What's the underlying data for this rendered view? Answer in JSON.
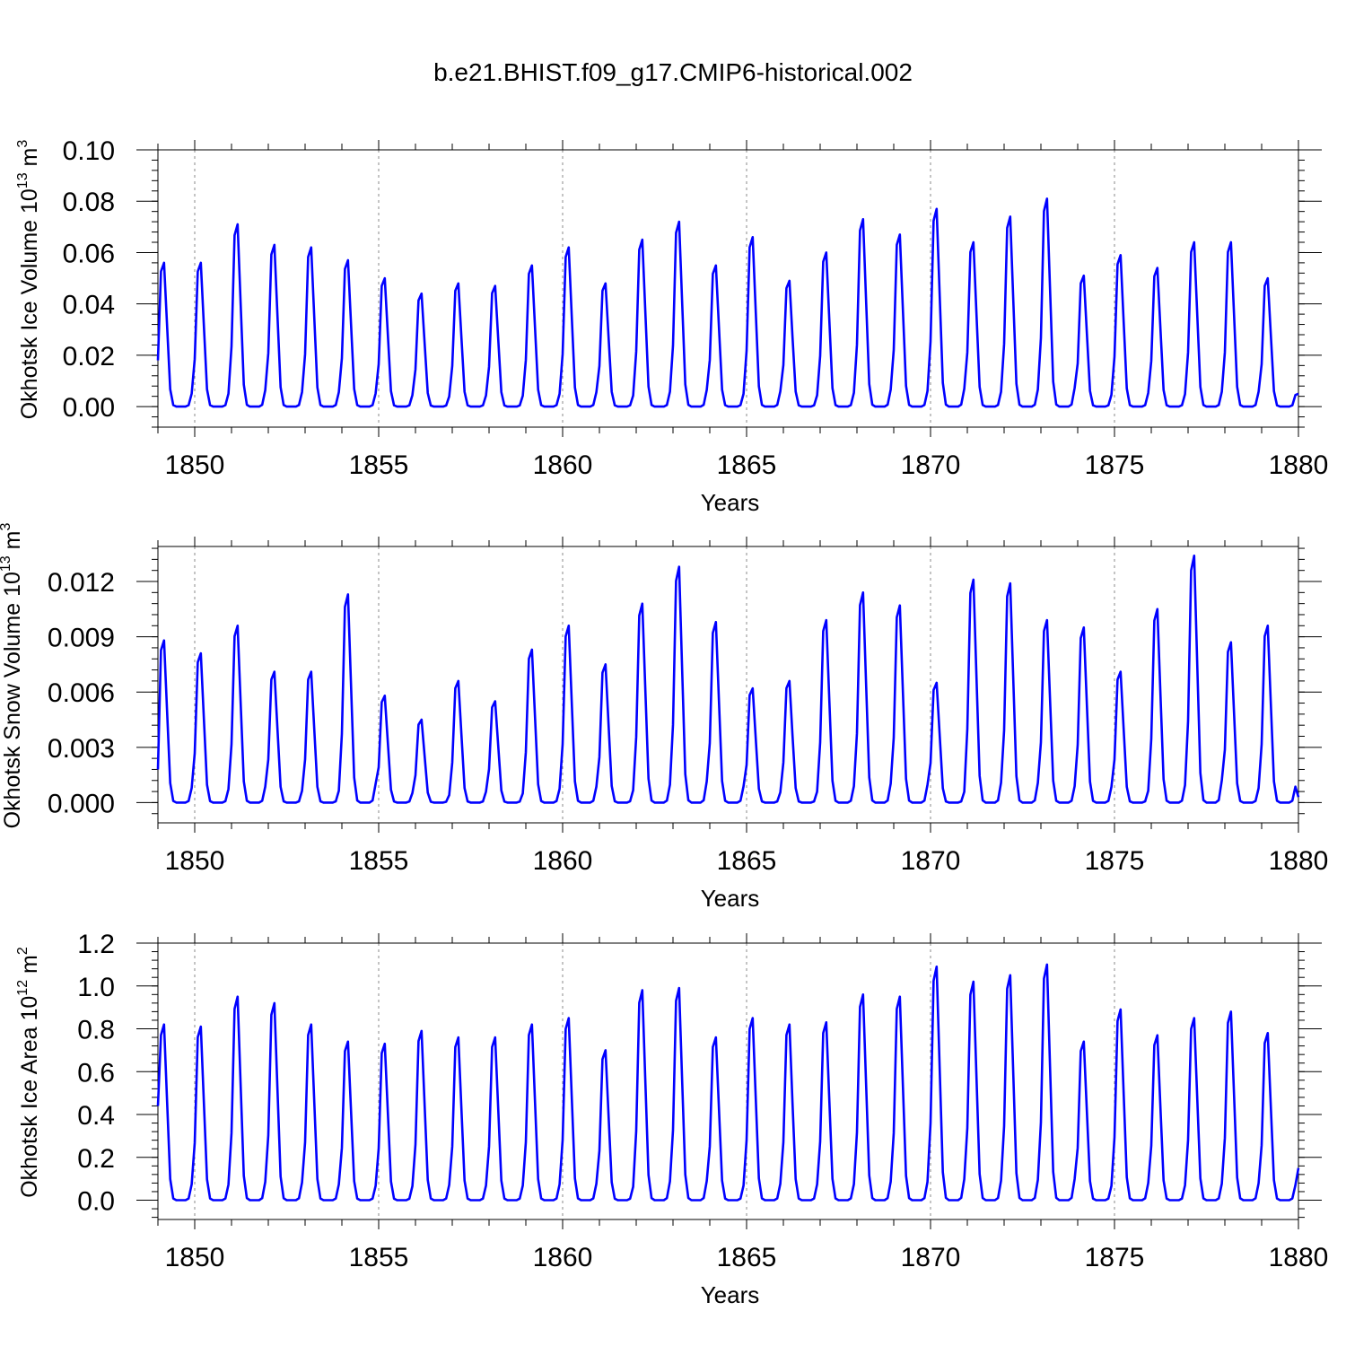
{
  "figure_title": "b.e21.BHIST.f09_g17.CMIP6-historical.002",
  "series_color": "#0000ff",
  "chart_data": [
    {
      "type": "line",
      "name": "ice-volume",
      "xlabel": "Years",
      "ylabel": "Okhotsk Ice Volume 10",
      "ylabel_exp": "13",
      "ylabel_unit": " m",
      "ylabel_unit_exp": "3",
      "xlim": [
        1849,
        1880
      ],
      "ylim": [
        -0.008,
        0.1
      ],
      "yticks": [
        0.0,
        0.02,
        0.04,
        0.06,
        0.08,
        0.1
      ],
      "ytick_labels": [
        "0.00",
        "0.02",
        "0.04",
        "0.06",
        "0.08",
        "0.10"
      ],
      "xticks": [
        1850,
        1855,
        1860,
        1865,
        1870,
        1875,
        1880
      ],
      "xtick_labels": [
        "1850",
        "1855",
        "1860",
        "1865",
        "1870",
        "1875",
        "1880"
      ],
      "grid_years": [
        1850,
        1855,
        1860,
        1865,
        1870,
        1875
      ],
      "start_year": 1849,
      "start_month": 1,
      "first_value": 0.018,
      "final_value": 0.005,
      "annual_peaks": [
        0.056,
        0.056,
        0.071,
        0.063,
        0.062,
        0.057,
        0.05,
        0.044,
        0.048,
        0.047,
        0.055,
        0.062,
        0.048,
        0.065,
        0.072,
        0.055,
        0.066,
        0.049,
        0.06,
        0.073,
        0.067,
        0.077,
        0.064,
        0.074,
        0.081,
        0.051,
        0.059,
        0.054,
        0.064,
        0.064,
        0.05
      ]
    },
    {
      "type": "line",
      "name": "snow-volume",
      "xlabel": "Years",
      "ylabel": "Okhotsk Snow Volume 10",
      "ylabel_exp": "13",
      "ylabel_unit": " m",
      "ylabel_unit_exp": "3",
      "xlim": [
        1849,
        1880
      ],
      "ylim": [
        -0.0011,
        0.0139
      ],
      "yticks": [
        0.0,
        0.003,
        0.006,
        0.009,
        0.012
      ],
      "ytick_labels": [
        "0.000",
        "0.003",
        "0.006",
        "0.009",
        "0.012"
      ],
      "xticks": [
        1850,
        1855,
        1860,
        1865,
        1870,
        1875,
        1880
      ],
      "xtick_labels": [
        "1850",
        "1855",
        "1860",
        "1865",
        "1870",
        "1875",
        "1880"
      ],
      "grid_years": [
        1850,
        1855,
        1860,
        1865,
        1870,
        1875
      ],
      "start_year": 1849,
      "start_month": 1,
      "first_value": 0.0018,
      "final_value": 0.0003,
      "annual_peaks": [
        0.0088,
        0.0081,
        0.0096,
        0.0071,
        0.0071,
        0.0113,
        0.0058,
        0.0045,
        0.0066,
        0.0055,
        0.0083,
        0.0096,
        0.0075,
        0.0108,
        0.0128,
        0.0098,
        0.0062,
        0.0066,
        0.0099,
        0.0114,
        0.0107,
        0.0065,
        0.0121,
        0.0119,
        0.0099,
        0.0095,
        0.0071,
        0.0105,
        0.0134,
        0.0087,
        0.0096
      ]
    },
    {
      "type": "line",
      "name": "ice-area",
      "xlabel": "Years",
      "ylabel": "Okhotsk Ice Area 10",
      "ylabel_exp": "12",
      "ylabel_unit": " m",
      "ylabel_unit_exp": "2",
      "xlim": [
        1849,
        1880
      ],
      "ylim": [
        -0.09,
        1.2
      ],
      "yticks": [
        0.0,
        0.2,
        0.4,
        0.6,
        0.8,
        1.0,
        1.2
      ],
      "ytick_labels": [
        "0.0",
        "0.2",
        "0.4",
        "0.6",
        "0.8",
        "1.0",
        "1.2"
      ],
      "xticks": [
        1850,
        1855,
        1860,
        1865,
        1870,
        1875,
        1880
      ],
      "xtick_labels": [
        "1850",
        "1855",
        "1860",
        "1865",
        "1870",
        "1875",
        "1880"
      ],
      "grid_years": [
        1850,
        1855,
        1860,
        1865,
        1870,
        1875
      ],
      "start_year": 1849,
      "start_month": 1,
      "first_value": 0.44,
      "final_value": 0.15,
      "annual_peaks": [
        0.82,
        0.81,
        0.95,
        0.92,
        0.82,
        0.74,
        0.73,
        0.79,
        0.76,
        0.76,
        0.82,
        0.85,
        0.7,
        0.98,
        0.99,
        0.76,
        0.85,
        0.82,
        0.83,
        0.96,
        0.95,
        1.09,
        1.02,
        1.05,
        1.1,
        0.74,
        0.89,
        0.77,
        0.85,
        0.88,
        0.78
      ]
    }
  ]
}
